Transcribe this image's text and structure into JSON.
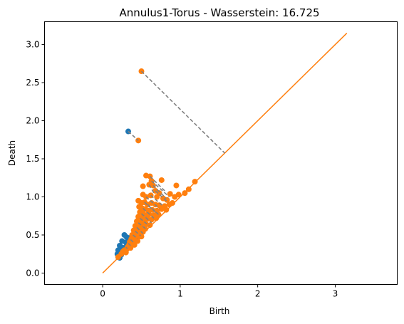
{
  "chart_data": {
    "type": "scatter",
    "title": "Annulus1-Torus - Wasserstein: 16.725",
    "xlabel": "Birth",
    "ylabel": "Death",
    "xlim": [
      -0.75,
      3.8
    ],
    "ylim": [
      -0.15,
      3.3
    ],
    "xticks": [
      0,
      1,
      2,
      3
    ],
    "xtick_labels": [
      "0",
      "1",
      "2",
      "3"
    ],
    "yticks": [
      0.0,
      0.5,
      1.0,
      1.5,
      2.0,
      2.5,
      3.0
    ],
    "ytick_labels": [
      "0.0",
      "0.5",
      "1.0",
      "1.5",
      "2.0",
      "2.5",
      "3.0"
    ],
    "grid": false,
    "colors": {
      "series_blue": "#1f77b4",
      "series_orange": "#ff7f0e",
      "diagonal": "#ff7f0e",
      "matching": "#808080"
    },
    "diagonal": {
      "from": [
        0,
        0
      ],
      "to": [
        3.15,
        3.15
      ]
    },
    "series": [
      {
        "color": "#1f77b4",
        "points": [
          [
            0.33,
            1.86
          ],
          [
            0.28,
            0.5
          ],
          [
            0.31,
            0.47
          ],
          [
            0.34,
            0.46
          ],
          [
            0.37,
            0.45
          ],
          [
            0.25,
            0.42
          ],
          [
            0.3,
            0.4
          ],
          [
            0.33,
            0.39
          ],
          [
            0.36,
            0.4
          ],
          [
            0.22,
            0.36
          ],
          [
            0.24,
            0.34
          ],
          [
            0.27,
            0.33
          ],
          [
            0.3,
            0.34
          ],
          [
            0.2,
            0.3
          ],
          [
            0.23,
            0.28
          ],
          [
            0.26,
            0.29
          ],
          [
            0.29,
            0.3
          ],
          [
            0.19,
            0.25
          ],
          [
            0.21,
            0.23
          ],
          [
            0.24,
            0.24
          ],
          [
            0.2,
            0.21
          ],
          [
            0.22,
            0.2
          ]
        ]
      },
      {
        "color": "#ff7f0e",
        "points": [
          [
            0.5,
            2.65
          ],
          [
            0.46,
            1.74
          ],
          [
            0.56,
            1.28
          ],
          [
            0.61,
            1.27
          ],
          [
            0.63,
            1.21
          ],
          [
            0.76,
            1.22
          ],
          [
            0.52,
            1.14
          ],
          [
            0.6,
            1.16
          ],
          [
            0.65,
            1.15
          ],
          [
            0.95,
            1.15
          ],
          [
            1.11,
            1.1
          ],
          [
            1.19,
            1.2
          ],
          [
            0.68,
            1.08
          ],
          [
            0.73,
            1.05
          ],
          [
            0.87,
            1.04
          ],
          [
            1.06,
            1.05
          ],
          [
            0.52,
            1.03
          ],
          [
            0.56,
            1.0
          ],
          [
            0.62,
            1.02
          ],
          [
            0.7,
            1.0
          ],
          [
            0.78,
            0.98
          ],
          [
            0.83,
            0.96
          ],
          [
            0.93,
            1.0
          ],
          [
            0.98,
            1.03
          ],
          [
            0.46,
            0.95
          ],
          [
            0.5,
            0.92
          ],
          [
            0.54,
            0.93
          ],
          [
            0.58,
            0.9
          ],
          [
            0.63,
            0.92
          ],
          [
            0.68,
            0.9
          ],
          [
            0.73,
            0.89
          ],
          [
            0.8,
            0.88
          ],
          [
            0.86,
            0.9
          ],
          [
            0.9,
            0.92
          ],
          [
            0.47,
            0.87
          ],
          [
            0.51,
            0.85
          ],
          [
            0.55,
            0.84
          ],
          [
            0.59,
            0.82
          ],
          [
            0.64,
            0.83
          ],
          [
            0.7,
            0.82
          ],
          [
            0.76,
            0.84
          ],
          [
            0.82,
            0.83
          ],
          [
            0.48,
            0.8
          ],
          [
            0.52,
            0.78
          ],
          [
            0.56,
            0.76
          ],
          [
            0.6,
            0.77
          ],
          [
            0.66,
            0.76
          ],
          [
            0.72,
            0.77
          ],
          [
            0.46,
            0.74
          ],
          [
            0.5,
            0.72
          ],
          [
            0.54,
            0.7
          ],
          [
            0.58,
            0.71
          ],
          [
            0.63,
            0.7
          ],
          [
            0.69,
            0.72
          ],
          [
            0.44,
            0.68
          ],
          [
            0.48,
            0.66
          ],
          [
            0.52,
            0.65
          ],
          [
            0.56,
            0.64
          ],
          [
            0.61,
            0.63
          ],
          [
            0.42,
            0.62
          ],
          [
            0.46,
            0.6
          ],
          [
            0.5,
            0.59
          ],
          [
            0.55,
            0.58
          ],
          [
            0.4,
            0.56
          ],
          [
            0.44,
            0.55
          ],
          [
            0.48,
            0.53
          ],
          [
            0.52,
            0.54
          ],
          [
            0.38,
            0.5
          ],
          [
            0.42,
            0.49
          ],
          [
            0.46,
            0.47
          ],
          [
            0.5,
            0.48
          ],
          [
            0.37,
            0.45
          ],
          [
            0.41,
            0.43
          ],
          [
            0.45,
            0.42
          ],
          [
            0.35,
            0.41
          ],
          [
            0.39,
            0.39
          ],
          [
            0.34,
            0.37
          ],
          [
            0.37,
            0.36
          ],
          [
            0.41,
            0.37
          ],
          [
            0.32,
            0.34
          ],
          [
            0.36,
            0.33
          ],
          [
            0.28,
            0.3
          ],
          [
            0.31,
            0.31
          ],
          [
            0.26,
            0.28
          ],
          [
            0.3,
            0.27
          ],
          [
            0.24,
            0.25
          ],
          [
            0.2,
            0.21
          ]
        ]
      }
    ],
    "matchings": [
      [
        [
          0.5,
          2.65
        ],
        [
          1.575,
          1.575
        ]
      ],
      [
        [
          0.33,
          1.86
        ],
        [
          0.46,
          1.74
        ]
      ],
      [
        [
          0.61,
          1.27
        ],
        [
          0.82,
          1.06
        ]
      ],
      [
        [
          0.63,
          1.21
        ],
        [
          0.86,
          1.0
        ]
      ],
      [
        [
          0.65,
          1.15
        ],
        [
          0.82,
          0.98
        ]
      ],
      [
        [
          0.68,
          1.08
        ],
        [
          0.83,
          0.94
        ]
      ],
      [
        [
          0.6,
          1.16
        ],
        [
          0.66,
          1.05
        ]
      ],
      [
        [
          0.56,
          1.0
        ],
        [
          0.73,
          0.85
        ]
      ],
      [
        [
          0.62,
          1.02
        ],
        [
          0.78,
          0.88
        ]
      ],
      [
        [
          0.54,
          0.93
        ],
        [
          0.7,
          0.78
        ]
      ],
      [
        [
          0.58,
          0.9
        ],
        [
          0.72,
          0.77
        ]
      ],
      [
        [
          0.52,
          0.85
        ],
        [
          0.66,
          0.72
        ]
      ],
      [
        [
          0.5,
          0.78
        ],
        [
          0.63,
          0.66
        ]
      ],
      [
        [
          0.48,
          0.72
        ],
        [
          0.6,
          0.62
        ]
      ],
      [
        [
          0.46,
          0.66
        ],
        [
          0.57,
          0.57
        ]
      ],
      [
        [
          0.44,
          0.6
        ],
        [
          0.52,
          0.52
        ]
      ],
      [
        [
          0.42,
          0.55
        ],
        [
          0.49,
          0.49
        ]
      ],
      [
        [
          0.39,
          0.5
        ],
        [
          0.45,
          0.45
        ]
      ],
      [
        [
          0.36,
          0.44
        ],
        [
          0.4,
          0.4
        ]
      ],
      [
        [
          0.33,
          0.39
        ],
        [
          0.36,
          0.36
        ]
      ],
      [
        [
          0.3,
          0.34
        ],
        [
          0.32,
          0.32
        ]
      ]
    ]
  }
}
